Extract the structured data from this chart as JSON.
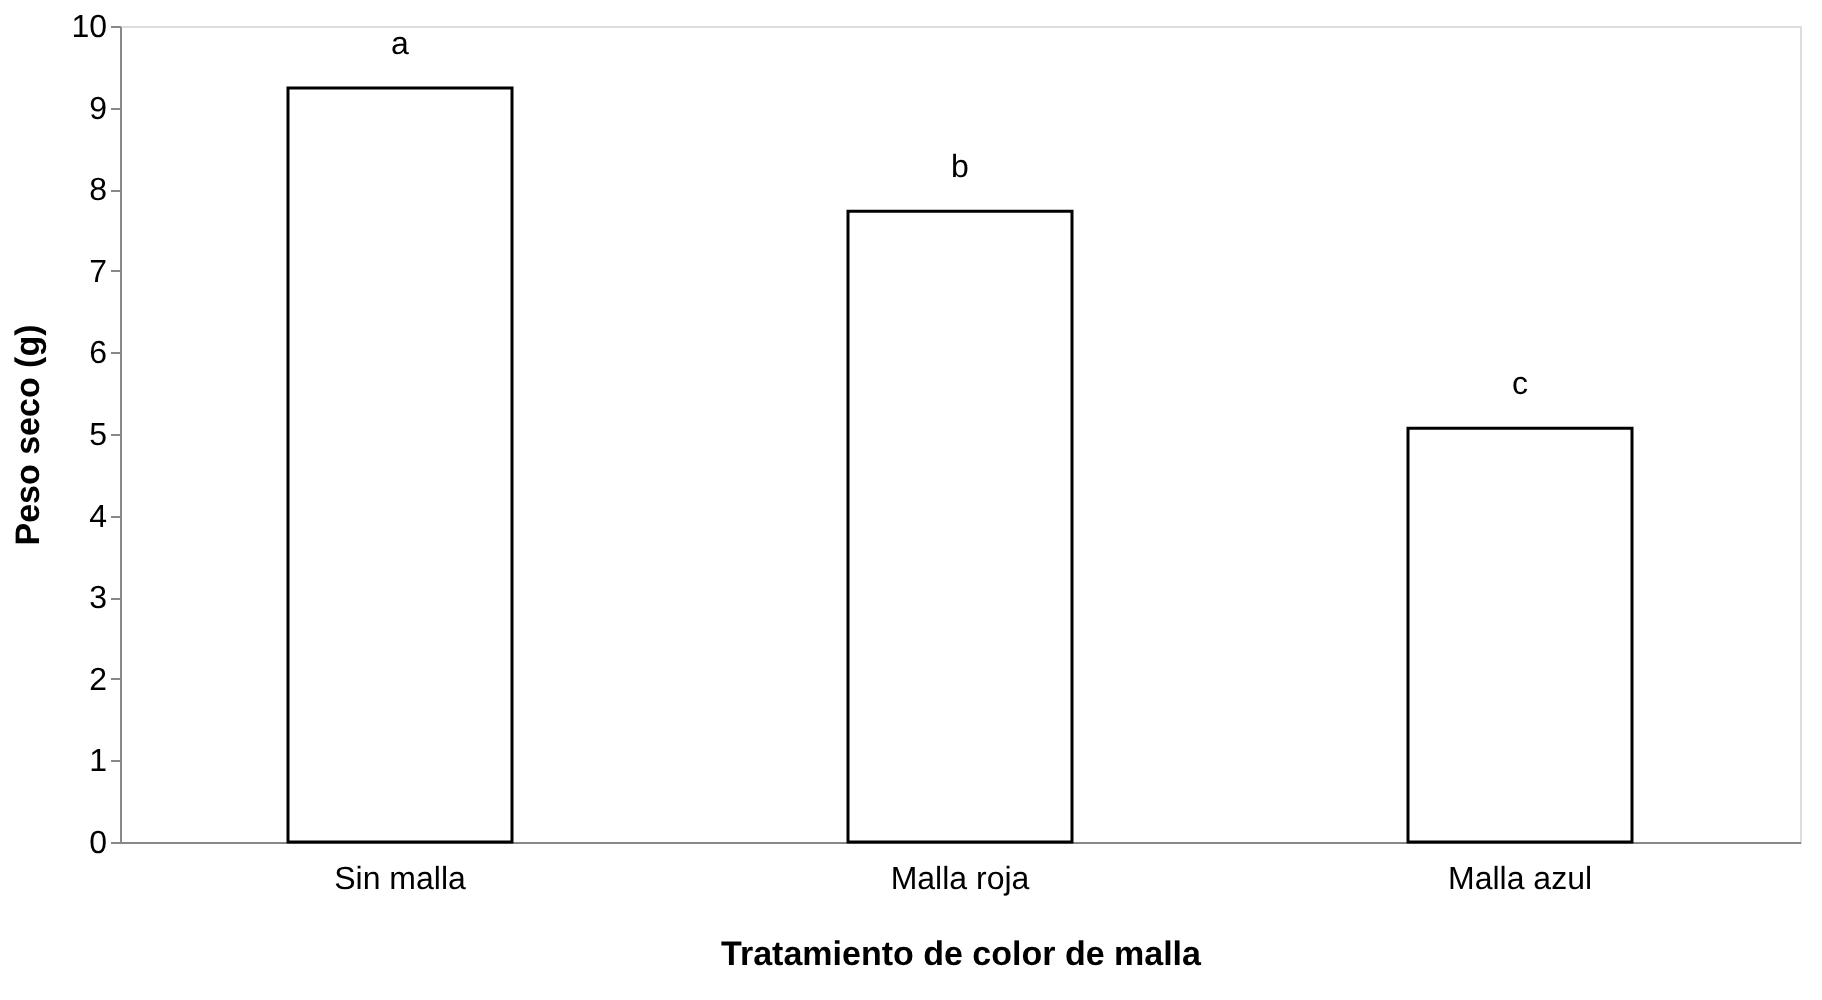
{
  "chart_data": {
    "type": "bar",
    "xlabel": "Tratamiento de color de malla",
    "ylabel": "Peso seco (g)",
    "categories": [
      "Sin malla",
      "Malla roja",
      "Malla azul"
    ],
    "values": [
      9.24,
      7.73,
      5.07
    ],
    "color": "#ffffff",
    "ylim": [
      0,
      10
    ],
    "yticks": [
      0,
      1,
      2,
      3,
      4,
      5,
      6,
      7,
      8,
      9,
      10
    ],
    "grid": false,
    "annotations": [
      {
        "text": "a",
        "x": "Sin malla",
        "y": 9.24
      },
      {
        "text": "b",
        "x": "Malla roja",
        "y": 7.73
      },
      {
        "text": "c",
        "x": "Malla azul",
        "y": 5.07
      }
    ]
  }
}
